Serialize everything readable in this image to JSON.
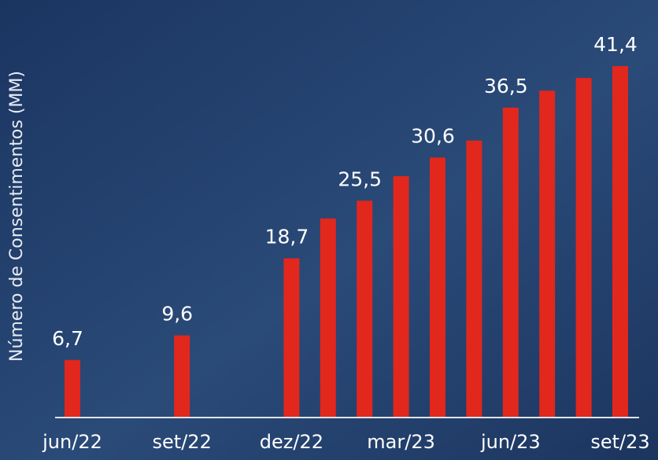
{
  "chart_data": {
    "type": "bar",
    "y_label": "Número de Consentimentos (MM)",
    "categories": [
      "jun/22",
      null,
      null,
      "set/22",
      null,
      null,
      "dez/22",
      null,
      null,
      "mar/23",
      null,
      null,
      "jun/23",
      null,
      null,
      "set/23"
    ],
    "values": [
      6.7,
      null,
      null,
      9.6,
      null,
      null,
      18.7,
      23.4,
      25.5,
      28.4,
      30.6,
      32.6,
      36.5,
      38.5,
      40.0,
      41.4
    ],
    "value_labels": [
      "6,7",
      null,
      null,
      "9,6",
      null,
      null,
      "18,7",
      null,
      "25,5",
      null,
      "30,6",
      null,
      "36,5",
      null,
      null,
      "41,4"
    ],
    "color": "#e2271d"
  }
}
